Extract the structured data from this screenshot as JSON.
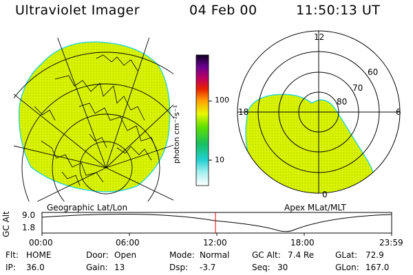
{
  "header": {
    "instrument": "Ultraviolet Imager",
    "date": "04 Feb 00",
    "time": "11:50:13 UT"
  },
  "colorbar": {
    "unit": "photon cm⁻²s⁻¹",
    "ticks": [
      "100",
      "10"
    ],
    "scale": "log"
  },
  "left_map": {
    "caption": "Geographic Lat/Lon"
  },
  "polar_map": {
    "caption": "Apex MLat/MLT",
    "mlt_labels": {
      "top": "12",
      "left": "18",
      "right": "6",
      "bottom": "0"
    },
    "lat_labels": [
      "60",
      "70",
      "80"
    ]
  },
  "altitude_plot": {
    "ylabel": "GC Alt",
    "y_ticks": [
      "9.0",
      "1.8"
    ],
    "x_ticks": [
      "00:00",
      "06:00",
      "12:00",
      "18:00",
      "23:59"
    ],
    "current_time": "11:50"
  },
  "status": {
    "row1": [
      {
        "key": "Flt:",
        "value": "HOME"
      },
      {
        "key": "Door:",
        "value": "Open"
      },
      {
        "key": "Mode:",
        "value": "Normal"
      },
      {
        "key": "GC Alt:",
        "value": "7.4 Re"
      },
      {
        "key": "GLat:",
        "value": "72.9"
      }
    ],
    "row2": [
      {
        "key": "IP:",
        "value": "36.0"
      },
      {
        "key": "Gain:",
        "value": "13"
      },
      {
        "key": "Dsp:",
        "value": "-3.7"
      },
      {
        "key": "Seq:",
        "value": "30"
      },
      {
        "key": "GLon:",
        "value": "167.0"
      }
    ]
  },
  "colors": {
    "image_fill": "#d6f000",
    "image_edge": "#35d6d0",
    "time_marker": "#e00000"
  }
}
